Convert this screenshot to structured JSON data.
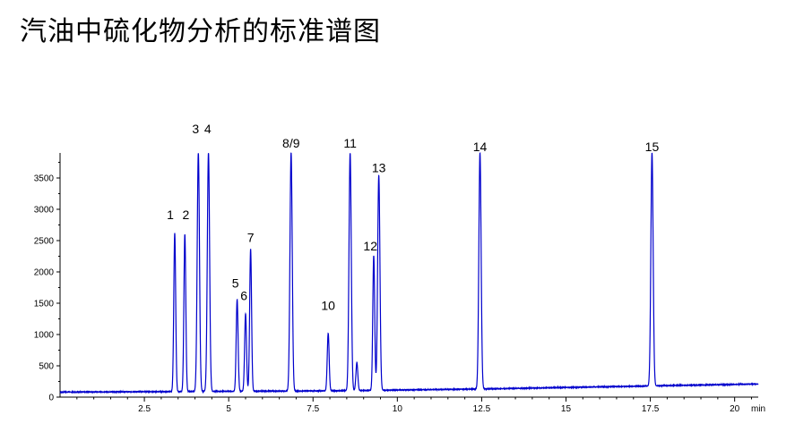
{
  "chart_data": {
    "type": "line",
    "title": "汽油中硫化物分析的标准谱图",
    "xlabel": "",
    "ylabel": "",
    "x_unit": "min",
    "xlim": [
      0,
      20.7
    ],
    "ylim": [
      0,
      3900
    ],
    "x_ticks": [
      2.5,
      5,
      7.5,
      10,
      12.5,
      15,
      17.5,
      20
    ],
    "x_tick_labels": [
      "2.5",
      "5",
      "7.5",
      "10",
      "12.5",
      "15",
      "17.5",
      "20"
    ],
    "y_ticks": [
      0,
      500,
      1000,
      1500,
      2000,
      2500,
      3000,
      3500
    ],
    "y_tick_labels": [
      "0",
      "500",
      "1000",
      "1500",
      "2000",
      "2500",
      "3000",
      "3500"
    ],
    "grid": false,
    "line_color": "#0000cc",
    "baseline": [
      [
        0,
        80
      ],
      [
        8,
        100
      ],
      [
        12.5,
        130
      ],
      [
        20.7,
        210
      ]
    ],
    "peaks": [
      {
        "label": "1",
        "x": 3.4,
        "y": 2620
      },
      {
        "label": "2",
        "x": 3.7,
        "y": 2600
      },
      {
        "label": "3",
        "x": 4.1,
        "y": 3900
      },
      {
        "label": "4",
        "x": 4.4,
        "y": 3900
      },
      {
        "label": "5",
        "x": 5.25,
        "y": 1560
      },
      {
        "label": "6",
        "x": 5.5,
        "y": 1330
      },
      {
        "label": "7",
        "x": 5.65,
        "y": 2360
      },
      {
        "label": "8/9",
        "x": 6.85,
        "y": 3900
      },
      {
        "label": "10",
        "x": 7.95,
        "y": 1020
      },
      {
        "label": "",
        "x": 8.8,
        "y": 550
      },
      {
        "label": "11",
        "x": 8.6,
        "y": 3900
      },
      {
        "label": "12",
        "x": 9.3,
        "y": 2260
      },
      {
        "label": "13",
        "x": 9.45,
        "y": 3540
      },
      {
        "label": "14",
        "x": 12.45,
        "y": 3900
      },
      {
        "label": "15",
        "x": 17.55,
        "y": 3900
      }
    ]
  }
}
